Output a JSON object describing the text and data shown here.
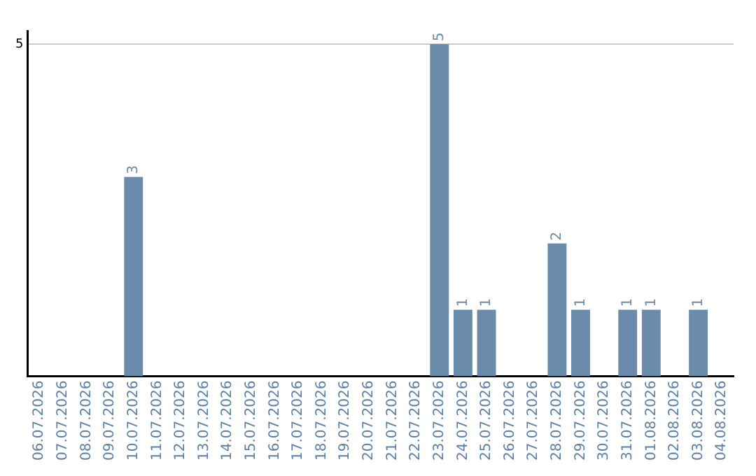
{
  "chart_data": {
    "type": "bar",
    "categories": [
      "06.07.2026",
      "07.07.2026",
      "08.07.2026",
      "09.07.2026",
      "10.07.2026",
      "11.07.2026",
      "12.07.2026",
      "13.07.2026",
      "14.07.2026",
      "15.07.2026",
      "16.07.2026",
      "17.07.2026",
      "18.07.2026",
      "19.07.2026",
      "20.07.2026",
      "21.07.2026",
      "22.07.2026",
      "23.07.2026",
      "24.07.2026",
      "25.07.2026",
      "26.07.2026",
      "27.07.2026",
      "28.07.2026",
      "29.07.2026",
      "30.07.2026",
      "31.07.2026",
      "01.08.2026",
      "02.08.2026",
      "03.08.2026",
      "04.08.2026"
    ],
    "values": [
      0,
      0,
      0,
      0,
      3,
      0,
      0,
      0,
      0,
      0,
      0,
      0,
      0,
      0,
      0,
      0,
      0,
      5,
      1,
      1,
      0,
      0,
      2,
      1,
      0,
      1,
      1,
      0,
      1,
      0
    ],
    "value_labels": [
      null,
      null,
      null,
      null,
      "3",
      null,
      null,
      null,
      null,
      null,
      null,
      null,
      null,
      null,
      null,
      null,
      null,
      "5",
      "1",
      "1",
      null,
      null,
      "2",
      "1",
      null,
      "1",
      "1",
      null,
      "1",
      null
    ],
    "color": "#6a8caa",
    "ylim": [
      0,
      5.2
    ],
    "yticks": [
      5
    ],
    "grid": "y",
    "legend": false
  }
}
